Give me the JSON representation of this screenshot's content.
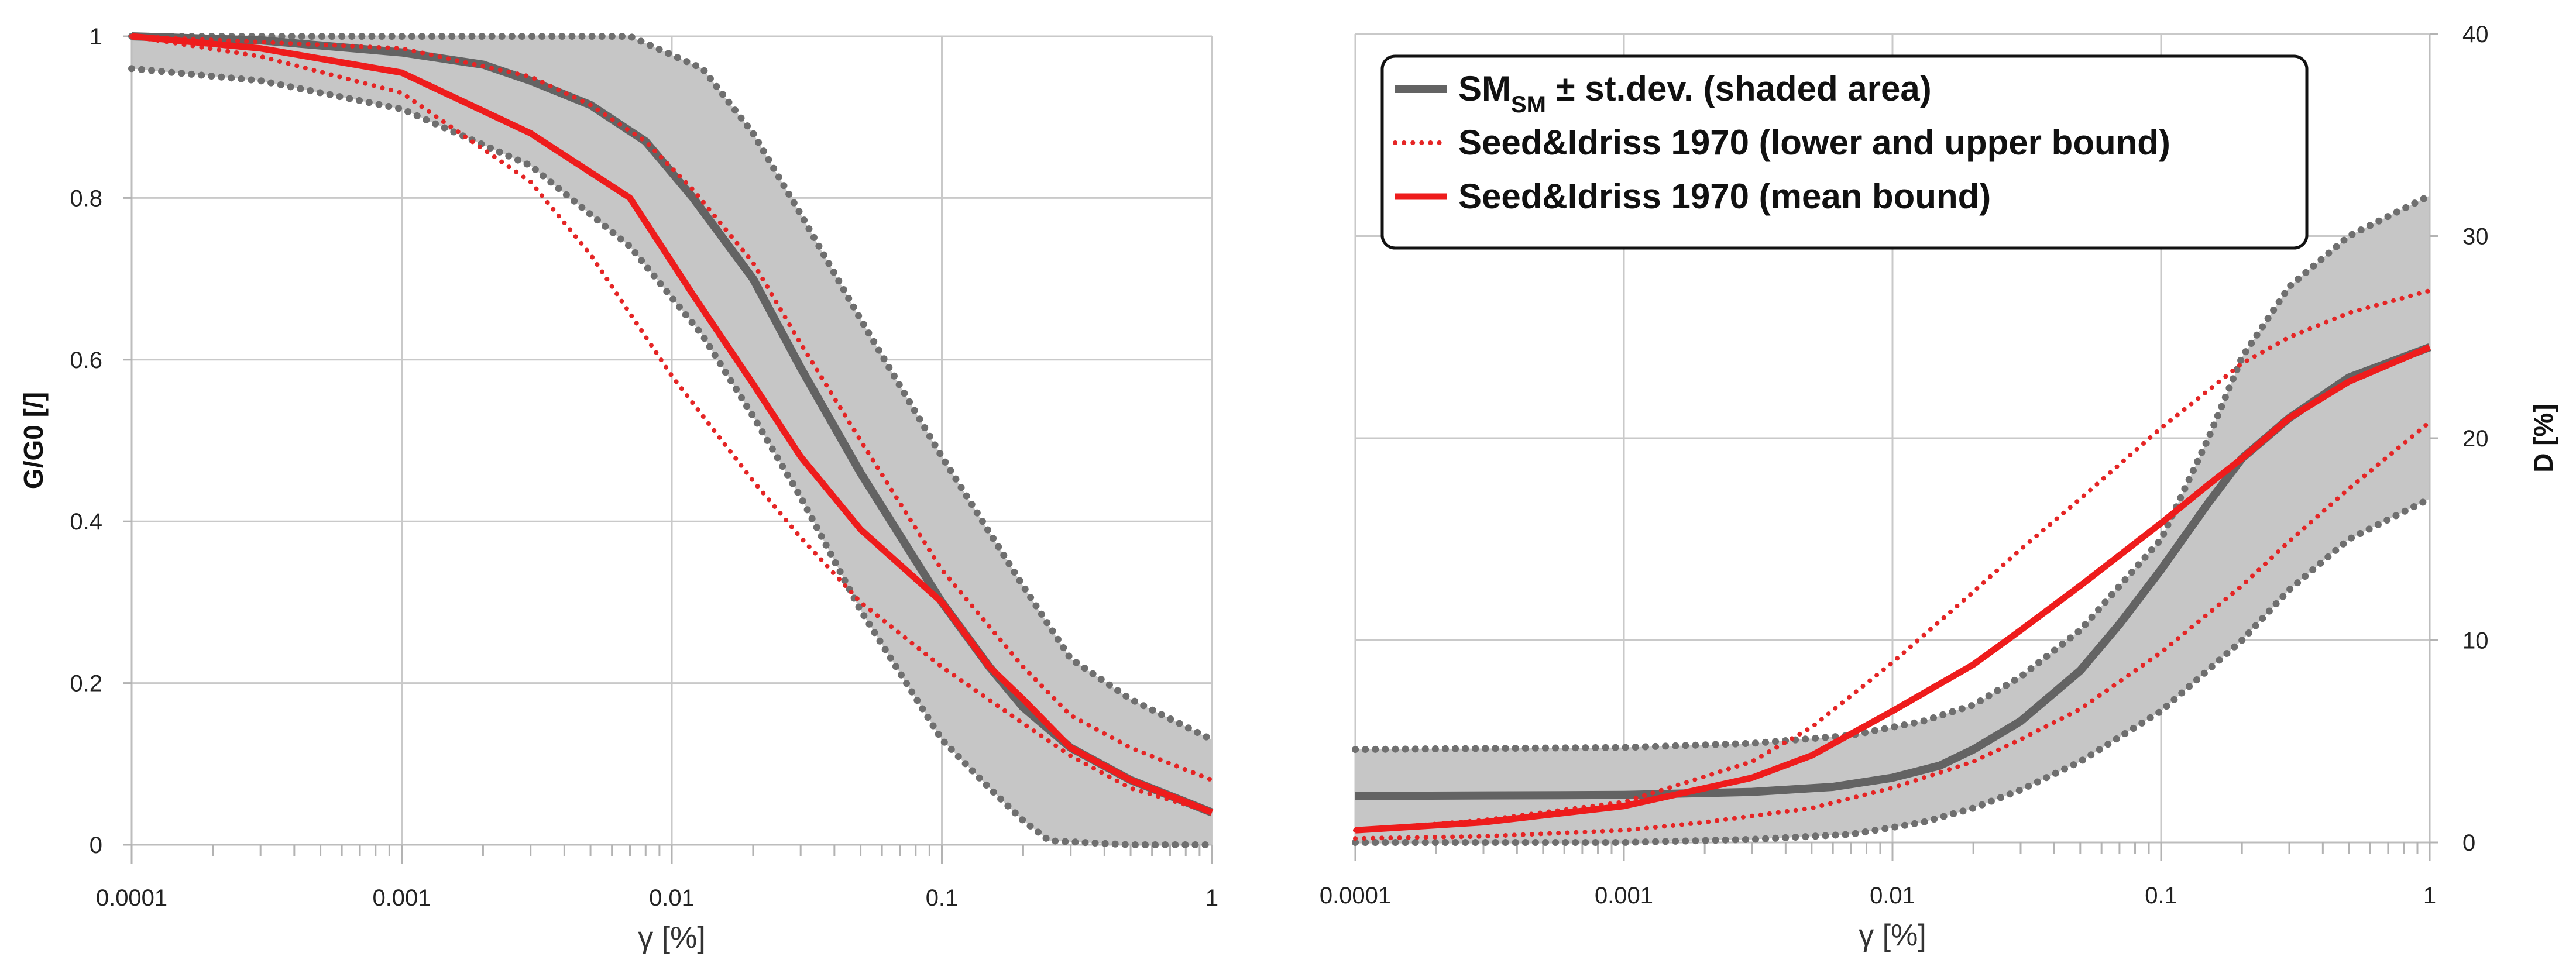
{
  "chart_data": [
    {
      "type": "line",
      "title": "",
      "xlabel": "γ [%]",
      "ylabel": "G/G0 [/]",
      "xscale": "log",
      "xlim": [
        0.0001,
        1
      ],
      "ylim": [
        0,
        1
      ],
      "xticks": [
        "0.0001",
        "0.001",
        "0.01",
        "0.1",
        "1"
      ],
      "yticks": [
        "0",
        "0.2",
        "0.4",
        "0.6",
        "0.8",
        "1"
      ],
      "grid": true,
      "series": [
        {
          "name": "SM_SM ± st.dev. (upper)",
          "role": "band-upper",
          "style": "grey-dotted",
          "x": [
            0.0001,
            0.001,
            0.003,
            0.007,
            0.013,
            0.02,
            0.03,
            0.05,
            0.1,
            0.2,
            0.3,
            0.5,
            1
          ],
          "y": [
            1,
            1,
            1,
            1,
            0.96,
            0.88,
            0.78,
            0.65,
            0.48,
            0.32,
            0.23,
            0.18,
            0.13
          ]
        },
        {
          "name": "SM_SM ± st.dev. (lower)",
          "role": "band-lower",
          "style": "grey-dotted",
          "x": [
            0.0001,
            0.0003,
            0.001,
            0.003,
            0.007,
            0.013,
            0.02,
            0.03,
            0.05,
            0.1,
            0.15,
            0.2,
            0.25,
            0.5,
            1
          ],
          "y": [
            0.96,
            0.945,
            0.91,
            0.84,
            0.74,
            0.63,
            0.53,
            0.43,
            0.29,
            0.13,
            0.07,
            0.03,
            0.005,
            0.0,
            0.0
          ]
        },
        {
          "name": "SM_SM mean",
          "role": "mean",
          "style": "grey-solid",
          "x": [
            0.0001,
            0.0003,
            0.001,
            0.002,
            0.003,
            0.005,
            0.008,
            0.012,
            0.02,
            0.03,
            0.05,
            0.1,
            0.15,
            0.2,
            0.3,
            0.5,
            1
          ],
          "y": [
            1,
            0.995,
            0.98,
            0.965,
            0.945,
            0.915,
            0.87,
            0.8,
            0.7,
            0.59,
            0.46,
            0.3,
            0.22,
            0.17,
            0.12,
            0.08,
            0.04
          ]
        },
        {
          "name": "Seed&Idriss 1970 (upper bound)",
          "role": "si-upper",
          "style": "red-dotted",
          "x": [
            0.0001,
            0.001,
            0.003,
            0.005,
            0.008,
            0.012,
            0.02,
            0.03,
            0.05,
            0.1,
            0.2,
            0.3,
            0.5,
            1
          ],
          "y": [
            1,
            0.985,
            0.95,
            0.915,
            0.87,
            0.81,
            0.72,
            0.62,
            0.5,
            0.34,
            0.22,
            0.16,
            0.12,
            0.08
          ]
        },
        {
          "name": "Seed&Idriss 1970 (lower bound)",
          "role": "si-lower",
          "style": "red-dotted",
          "x": [
            0.0001,
            0.0003,
            0.001,
            0.003,
            0.005,
            0.01,
            0.02,
            0.03,
            0.05,
            0.1,
            0.2,
            0.3,
            0.5,
            1
          ],
          "y": [
            1,
            0.975,
            0.93,
            0.82,
            0.73,
            0.58,
            0.45,
            0.38,
            0.3,
            0.22,
            0.15,
            0.11,
            0.07,
            0.04
          ]
        },
        {
          "name": "Seed&Idriss 1970 (mean bound)",
          "role": "si-mean",
          "style": "red-solid",
          "x": [
            0.0001,
            0.0003,
            0.001,
            0.003,
            0.007,
            0.012,
            0.02,
            0.03,
            0.05,
            0.1,
            0.15,
            0.2,
            0.3,
            0.5,
            1
          ],
          "y": [
            1,
            0.985,
            0.955,
            0.88,
            0.8,
            0.68,
            0.57,
            0.48,
            0.39,
            0.3,
            0.22,
            0.18,
            0.12,
            0.08,
            0.04
          ]
        }
      ]
    },
    {
      "type": "line",
      "title": "",
      "xlabel": "γ [%]",
      "ylabel": "D [%]",
      "xscale": "log",
      "xlim": [
        0.0001,
        1
      ],
      "ylim": [
        0,
        40
      ],
      "xticks": [
        "0.0001",
        "0.001",
        "0.01",
        "0.1",
        "1"
      ],
      "yticks": [
        "0",
        "10",
        "20",
        "30",
        "40"
      ],
      "y_axis_side": "right",
      "grid": true,
      "legend": {
        "position": "top-left",
        "entries": [
          {
            "text": "SM",
            "subscript": "SM",
            "suffix": " ± st.dev. (shaded area)",
            "style": "grey-solid"
          },
          {
            "text": "Seed&Idriss 1970 (lower and upper bound)",
            "style": "red-dotted"
          },
          {
            "text": "Seed&Idriss 1970 (mean bound)",
            "style": "red-solid"
          }
        ]
      },
      "series": [
        {
          "name": "SM_SM ± st.dev. (upper)",
          "role": "band-upper",
          "style": "grey-dotted",
          "x": [
            0.0001,
            0.001,
            0.003,
            0.007,
            0.013,
            0.02,
            0.03,
            0.05,
            0.1,
            0.15,
            0.2,
            0.3,
            0.5,
            1
          ],
          "y": [
            4.6,
            4.7,
            4.9,
            5.3,
            6.0,
            6.8,
            8.2,
            10.5,
            15.0,
            20.0,
            24.0,
            27.5,
            30.0,
            32.0
          ]
        },
        {
          "name": "SM_SM ± st.dev. (lower)",
          "role": "band-lower",
          "style": "grey-dotted",
          "x": [
            0.0001,
            0.001,
            0.003,
            0.007,
            0.013,
            0.02,
            0.03,
            0.05,
            0.1,
            0.2,
            0.3,
            0.5,
            1
          ],
          "y": [
            0.0,
            0.0,
            0.15,
            0.4,
            1.0,
            1.7,
            2.6,
            4.0,
            6.5,
            10.0,
            12.5,
            15.0,
            17.0
          ]
        },
        {
          "name": "SM_SM mean",
          "role": "mean",
          "style": "grey-solid",
          "x": [
            0.0001,
            0.001,
            0.003,
            0.006,
            0.01,
            0.015,
            0.02,
            0.03,
            0.05,
            0.07,
            0.1,
            0.15,
            0.2,
            0.3,
            0.5,
            1
          ],
          "y": [
            2.3,
            2.35,
            2.5,
            2.75,
            3.2,
            3.8,
            4.6,
            6.0,
            8.5,
            10.8,
            13.5,
            16.8,
            19.0,
            21.0,
            23.0,
            24.5
          ]
        },
        {
          "name": "Seed&Idriss 1970 (upper bound)",
          "role": "si-upper",
          "style": "red-dotted",
          "x": [
            0.0001,
            0.0003,
            0.001,
            0.003,
            0.005,
            0.01,
            0.02,
            0.03,
            0.05,
            0.1,
            0.2,
            0.3,
            0.5,
            1
          ],
          "y": [
            0.6,
            1.1,
            2.0,
            4.0,
            5.7,
            8.9,
            12.4,
            14.5,
            17.0,
            20.5,
            23.7,
            25.0,
            26.2,
            27.3
          ]
        },
        {
          "name": "Seed&Idriss 1970 (lower bound)",
          "role": "si-lower",
          "style": "red-dotted",
          "x": [
            0.0001,
            0.0003,
            0.001,
            0.002,
            0.005,
            0.01,
            0.02,
            0.03,
            0.05,
            0.1,
            0.2,
            0.3,
            0.5,
            1
          ],
          "y": [
            0.2,
            0.3,
            0.6,
            1.0,
            1.7,
            2.7,
            4.0,
            5.1,
            6.6,
            9.4,
            12.7,
            14.9,
            17.5,
            20.8
          ]
        },
        {
          "name": "Seed&Idriss 1970 (mean bound)",
          "role": "si-mean",
          "style": "red-solid",
          "x": [
            0.0001,
            0.0003,
            0.001,
            0.003,
            0.005,
            0.01,
            0.02,
            0.03,
            0.05,
            0.1,
            0.15,
            0.2,
            0.3,
            0.5,
            1
          ],
          "y": [
            0.6,
            1.0,
            1.8,
            3.2,
            4.3,
            6.5,
            8.8,
            10.5,
            12.7,
            15.8,
            17.7,
            19.0,
            21.0,
            22.8,
            24.5
          ]
        }
      ]
    }
  ]
}
